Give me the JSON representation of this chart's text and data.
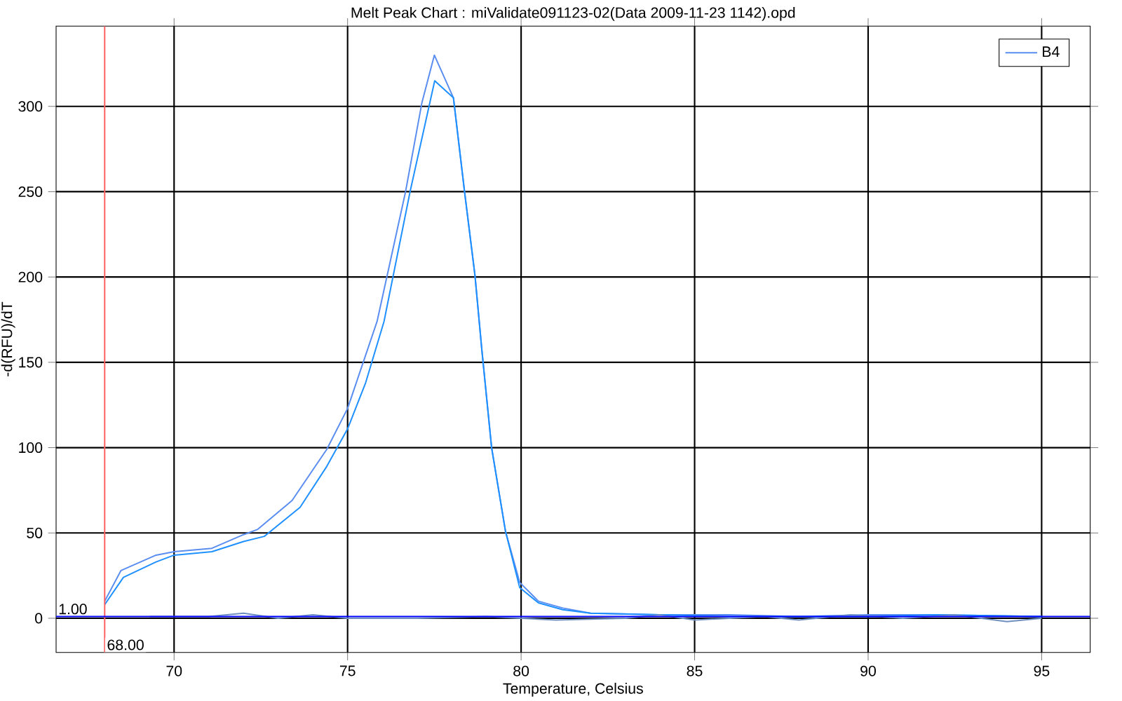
{
  "chart_data": {
    "type": "line",
    "title": "Melt Peak Chart : miValidate091123-02(Data 2009-11-23 1142).opd",
    "xlabel": "Temperature, Celsius",
    "ylabel": "-d(RFU)/dT",
    "series": [
      {
        "name": "B4",
        "color": "#5a8df0",
        "x": [
          68,
          68.47,
          69.48,
          70,
          71.09,
          72.0,
          72.4,
          73.4,
          74.4,
          75,
          75.85,
          76.67,
          77.14,
          77.5,
          78.05,
          78.37,
          78.67,
          78.87,
          79.15,
          79.55,
          79.96,
          80.5,
          81.2,
          82,
          84,
          86,
          88,
          90,
          92,
          95
        ],
        "values": [
          10,
          28,
          37,
          39,
          41,
          49,
          52,
          69,
          99,
          123,
          174,
          250,
          302,
          330,
          305,
          250,
          201,
          157,
          100,
          51,
          21,
          10,
          6,
          3,
          2,
          2,
          1,
          2,
          2,
          1
        ]
      },
      {
        "color": "#1e90ff",
        "x": [
          68,
          68.54,
          69.48,
          70,
          71.09,
          72,
          72.6,
          73.63,
          74.4,
          75,
          75.52,
          76.05,
          76.8,
          77.51,
          78.05,
          78.37,
          78.67,
          78.87,
          79.15,
          79.55,
          79.96,
          80.5,
          81.2,
          82,
          84,
          86,
          88,
          90,
          92,
          95
        ],
        "values": [
          8,
          24,
          33,
          37,
          39,
          45,
          48,
          65,
          89,
          111,
          138,
          174,
          250,
          315,
          305,
          250,
          201,
          157,
          100,
          51,
          18,
          9,
          5,
          3,
          2,
          1,
          1,
          1,
          2,
          1
        ]
      },
      {
        "color": "#7090c0",
        "x": [
          69.3,
          71,
          72,
          73,
          74,
          75,
          77,
          79,
          81,
          83,
          84,
          85,
          87,
          88,
          89.5,
          91,
          92.5,
          94,
          95
        ],
        "values": [
          1,
          1,
          3,
          0,
          2,
          0,
          0,
          1,
          -1,
          0,
          2,
          -1,
          1,
          -1,
          2,
          0,
          2,
          -2,
          0
        ]
      }
    ],
    "xlim": [
      66.6,
      96.4
    ],
    "ylim": [
      -20,
      347
    ],
    "xticks": [
      70,
      75,
      80,
      85,
      90,
      95
    ],
    "yticks": [
      0,
      50,
      100,
      150,
      200,
      250,
      300
    ],
    "ref_lines": [
      {
        "axis": "x",
        "value": 68,
        "label": "68.00",
        "color": "#ff6060"
      },
      {
        "axis": "y",
        "value": 1,
        "label": "1.00",
        "color": "#0000ff"
      }
    ],
    "grid": true,
    "legend": "top right",
    "marker": "none",
    "line_style": "solid"
  }
}
